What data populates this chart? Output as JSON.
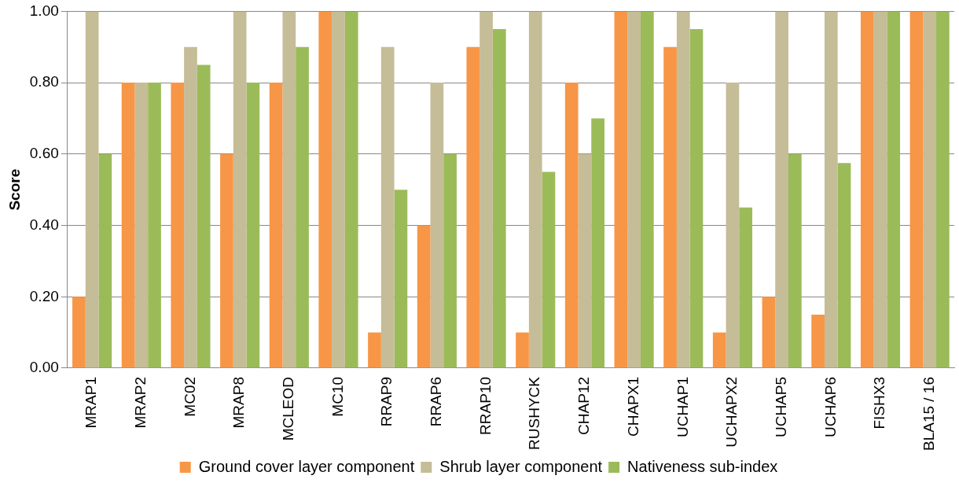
{
  "chart_data": {
    "type": "bar",
    "ylabel": "Score",
    "categories": [
      "MRAP1",
      "MRAP2",
      "MC02",
      "MRAP8",
      "MCLEOD",
      "MC10",
      "RRAP9",
      "RRAP6",
      "RRAP10",
      "RUSHYCK",
      "CHAP12",
      "CHAPX1",
      "UCHAP1",
      "UCHAPX2",
      "UCHAP5",
      "UCHAP6",
      "FISHX3",
      "BLA15 / 16"
    ],
    "series": [
      {
        "name": "Ground cover layer component",
        "color": "#f79646",
        "values": [
          0.2,
          0.8,
          0.8,
          0.6,
          0.8,
          1.0,
          0.1,
          0.4,
          0.9,
          0.1,
          0.8,
          1.0,
          0.9,
          0.1,
          0.2,
          0.15,
          1.0,
          1.0
        ]
      },
      {
        "name": "Shrub layer component",
        "color": "#c4bd97",
        "values": [
          1.0,
          0.8,
          0.9,
          1.0,
          1.0,
          1.0,
          0.9,
          0.8,
          1.0,
          1.0,
          0.6,
          1.0,
          1.0,
          0.8,
          1.0,
          1.0,
          1.0,
          1.0
        ]
      },
      {
        "name": "Nativeness sub-index",
        "color": "#9bbb59",
        "values": [
          0.6,
          0.8,
          0.85,
          0.8,
          0.9,
          1.0,
          0.5,
          0.6,
          0.95,
          0.55,
          0.7,
          1.0,
          0.95,
          0.45,
          0.6,
          0.575,
          1.0,
          1.0
        ]
      }
    ],
    "ylim": [
      0,
      1
    ],
    "yticks": [
      {
        "value": 0,
        "label": "0.00"
      },
      {
        "value": 0.2,
        "label": "0.20"
      },
      {
        "value": 0.4,
        "label": "0.40"
      },
      {
        "value": 0.6,
        "label": "0.60"
      },
      {
        "value": 0.8,
        "label": "0.80"
      },
      {
        "value": 1,
        "label": "1.00"
      }
    ],
    "grid": "y",
    "legend": "bottom"
  }
}
